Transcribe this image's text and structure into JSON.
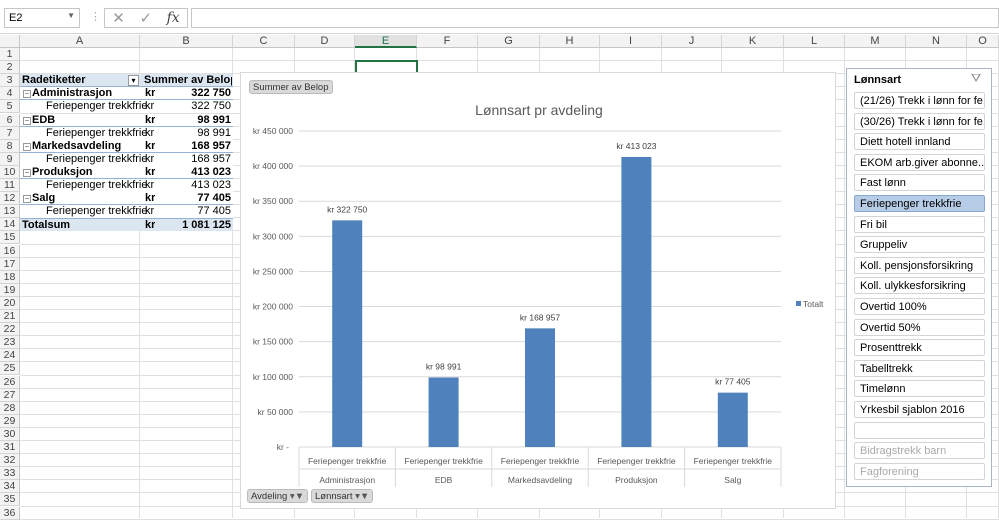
{
  "formula_bar": {
    "name_box": "E2",
    "cancel_icon": "close-icon",
    "enter_icon": "check-icon",
    "fx_label": "fx",
    "formula": ""
  },
  "columns": [
    "A",
    "B",
    "C",
    "D",
    "E",
    "F",
    "G",
    "H",
    "I",
    "J",
    "K",
    "L",
    "M",
    "N",
    "O"
  ],
  "selected_column": "E",
  "rows": [
    "1",
    "2",
    "3",
    "4",
    "5",
    "6",
    "7",
    "8",
    "9",
    "10",
    "11",
    "12",
    "13",
    "14",
    "15",
    "16",
    "17",
    "18",
    "19",
    "20",
    "21",
    "22",
    "23",
    "24",
    "25",
    "26",
    "27",
    "28",
    "29",
    "30",
    "31",
    "32",
    "33",
    "34",
    "35",
    "36"
  ],
  "pivot": {
    "header_label": "Radetiketter",
    "header_value": "Summer av Belop",
    "rows": [
      {
        "label": "Administrasjon",
        "cur": "kr",
        "value": "322 750",
        "level": 0
      },
      {
        "label": "Feriepenger trekkfrie",
        "cur": "kr",
        "value": "322 750",
        "level": 1
      },
      {
        "label": "EDB",
        "cur": "kr",
        "value": "98 991",
        "level": 0
      },
      {
        "label": "Feriepenger trekkfrie",
        "cur": "kr",
        "value": "98 991",
        "level": 1
      },
      {
        "label": "Markedsavdeling",
        "cur": "kr",
        "value": "168 957",
        "level": 0
      },
      {
        "label": "Feriepenger trekkfrie",
        "cur": "kr",
        "value": "168 957",
        "level": 1
      },
      {
        "label": "Produksjon",
        "cur": "kr",
        "value": "413 023",
        "level": 0
      },
      {
        "label": "Feriepenger trekkfrie",
        "cur": "kr",
        "value": "413 023",
        "level": 1
      },
      {
        "label": "Salg",
        "cur": "kr",
        "value": "77 405",
        "level": 0
      },
      {
        "label": "Feriepenger trekkfrie",
        "cur": "kr",
        "value": "77 405",
        "level": 1
      }
    ],
    "total_label": "Totalsum",
    "total_cur": "kr",
    "total_value": "1 081 125"
  },
  "chart_buttons": {
    "value_field": "Summer av Belop",
    "axis_field": "Avdeling",
    "legend_field": "Lønnsart"
  },
  "chart_data": {
    "type": "bar",
    "title": "Lønnsart pr avdeling",
    "categories": [
      "Administrasjon",
      "EDB",
      "Markedsavdeling",
      "Produksjon",
      "Salg"
    ],
    "subcategory": "Feriepenger trekkfrie",
    "series": [
      {
        "name": "Totalt",
        "values": [
          322750,
          98991,
          168957,
          413023,
          77405
        ],
        "color": "#4f81bd"
      }
    ],
    "data_labels": [
      "kr 322 750",
      "kr 98 991",
      "kr 168 957",
      "kr 413 023",
      "kr 77 405"
    ],
    "ylim": [
      0,
      450000
    ],
    "yticks": [
      0,
      50000,
      100000,
      150000,
      200000,
      250000,
      300000,
      350000,
      400000,
      450000
    ],
    "ytick_labels": [
      "kr -",
      "kr 50 000",
      "kr 100 000",
      "kr 150 000",
      "kr 200 000",
      "kr 250 000",
      "kr 300 000",
      "kr 350 000",
      "kr 400 000",
      "kr 450 000"
    ],
    "grid": true,
    "legend": "right"
  },
  "slicer": {
    "title": "Lønnsart",
    "items": [
      {
        "label": "(21/26) Trekk i lønn for fe...",
        "state": "normal"
      },
      {
        "label": "(30/26) Trekk i lønn for fe...",
        "state": "normal"
      },
      {
        "label": "Diett hotell innland",
        "state": "normal"
      },
      {
        "label": "EKOM arb.giver abonne...",
        "state": "normal"
      },
      {
        "label": "Fast lønn",
        "state": "normal"
      },
      {
        "label": "Feriepenger trekkfrie",
        "state": "selected"
      },
      {
        "label": "Fri bil",
        "state": "normal"
      },
      {
        "label": "Gruppeliv",
        "state": "normal"
      },
      {
        "label": "Koll. pensjonsforsikring",
        "state": "normal"
      },
      {
        "label": "Koll. ulykkesforsikring",
        "state": "normal"
      },
      {
        "label": "Overtid 100%",
        "state": "normal"
      },
      {
        "label": "Overtid 50%",
        "state": "normal"
      },
      {
        "label": "Prosenttrekk",
        "state": "normal"
      },
      {
        "label": "Tabelltrekk",
        "state": "normal"
      },
      {
        "label": "Timelønn",
        "state": "normal"
      },
      {
        "label": "Yrkesbil sjablon 2016",
        "state": "normal"
      },
      {
        "label": "",
        "state": "normal"
      },
      {
        "label": "Bidragstrekk barn",
        "state": "dim"
      },
      {
        "label": "Fagforening",
        "state": "dim"
      }
    ]
  }
}
